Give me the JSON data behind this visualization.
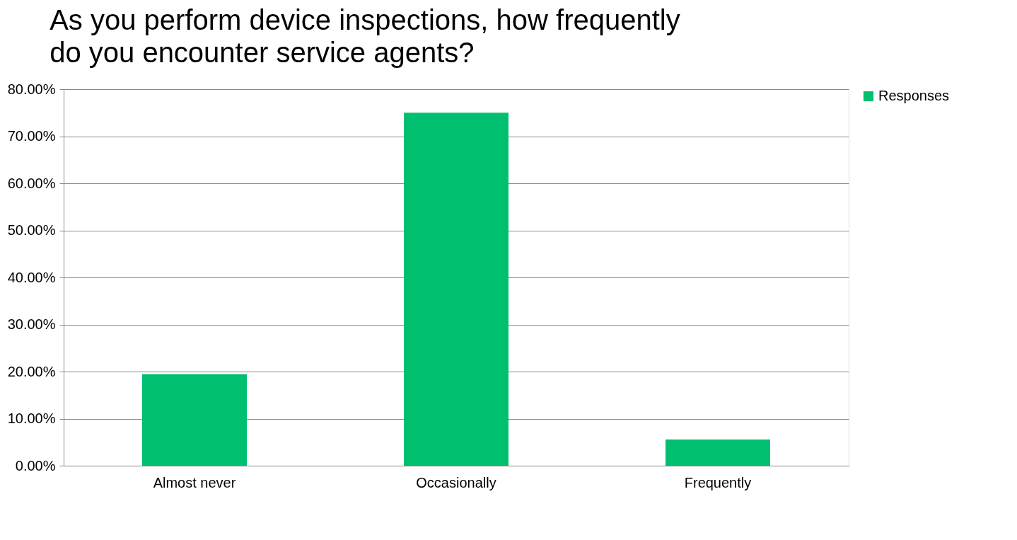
{
  "chart_data": {
    "type": "bar",
    "title": [
      "As you perform device inspections, how frequently",
      "do you encounter service agents?"
    ],
    "categories": [
      "Almost never",
      "Occasionally",
      "Frequently"
    ],
    "series": [
      {
        "name": "Responses",
        "color": "#00c070",
        "values": [
          19.44,
          75.0,
          5.56
        ]
      }
    ],
    "ylim": [
      0,
      80
    ],
    "yticks": [
      {
        "value": 0,
        "label": "0.00%"
      },
      {
        "value": 10,
        "label": "10.00%"
      },
      {
        "value": 20,
        "label": "20.00%"
      },
      {
        "value": 30,
        "label": "30.00%"
      },
      {
        "value": 40,
        "label": "40.00%"
      },
      {
        "value": 50,
        "label": "50.00%"
      },
      {
        "value": 60,
        "label": "60.00%"
      },
      {
        "value": 70,
        "label": "70.00%"
      },
      {
        "value": 80,
        "label": "80.00%"
      }
    ],
    "grid": "y",
    "legend": "right"
  }
}
